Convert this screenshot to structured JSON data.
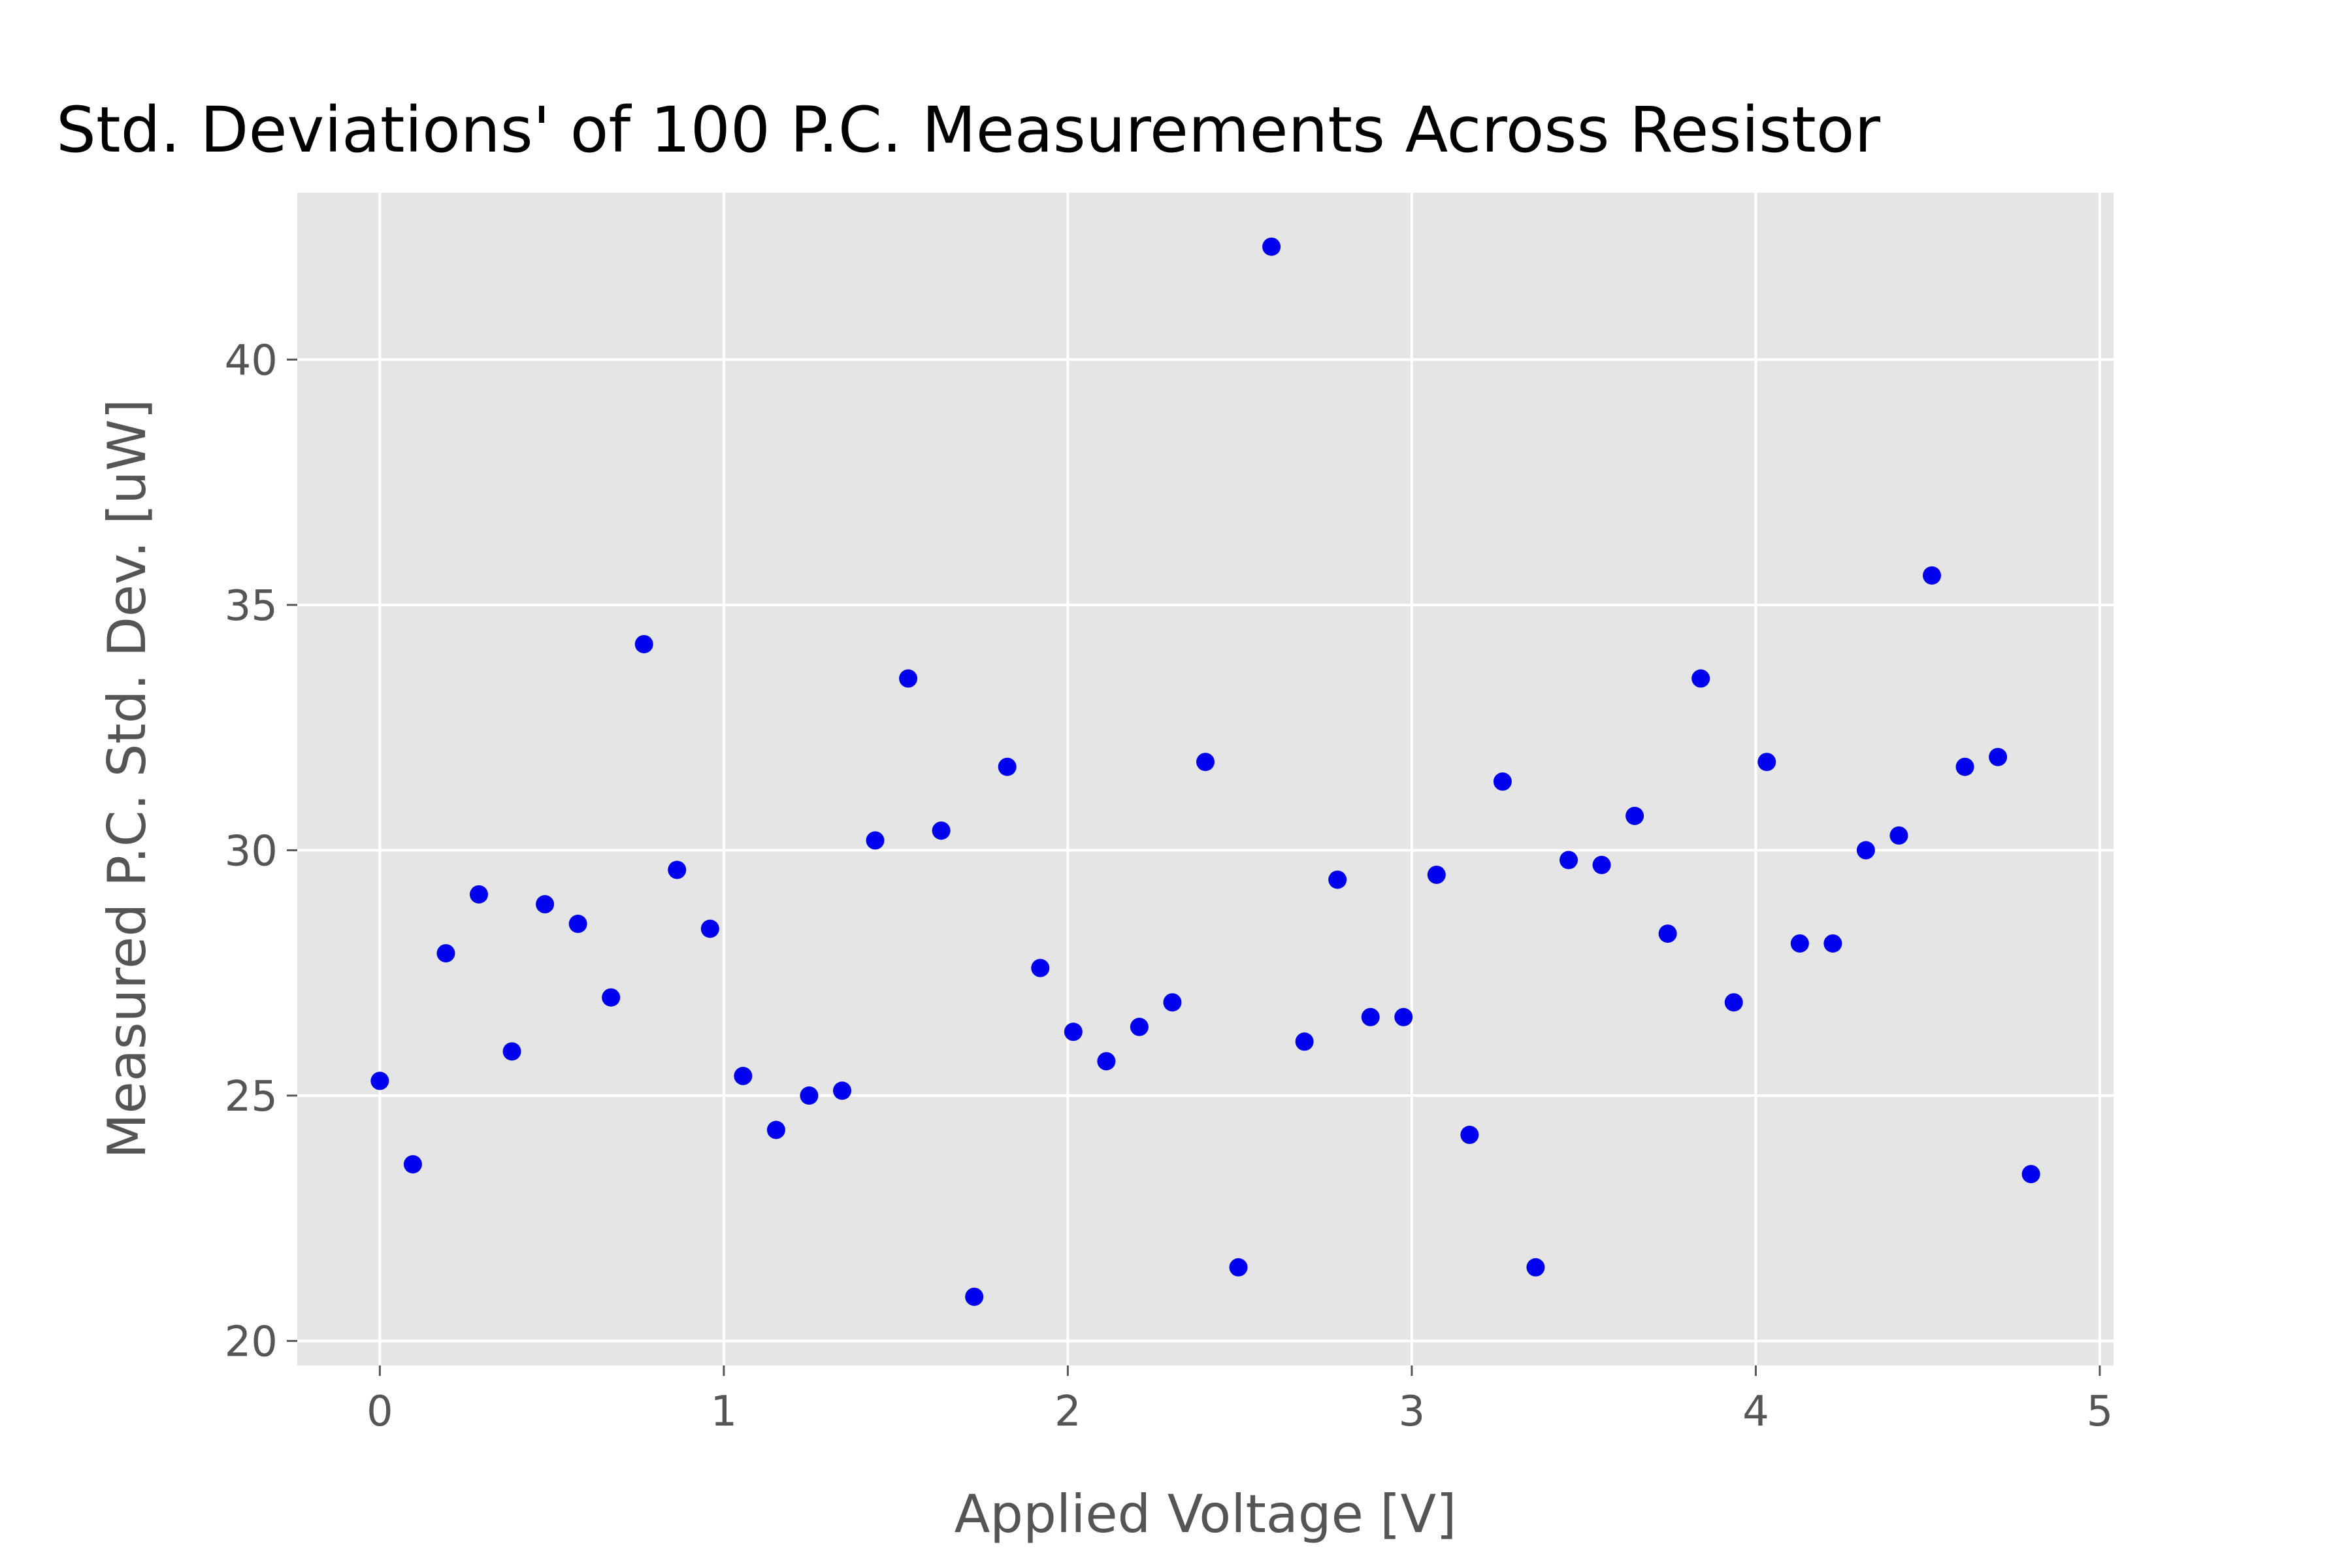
{
  "chart_data": {
    "type": "scatter",
    "title": "Std. Deviations' of 100 P.C. Measurements Across Resistor",
    "xlabel": "Applied Voltage [V]",
    "ylabel": "Measured P.C. Std. Dev. [uW]",
    "xlim": [
      -0.24,
      5.04
    ],
    "ylim": [
      19.5,
      43.4
    ],
    "xticks": [
      0,
      1,
      2,
      3,
      4,
      5
    ],
    "yticks": [
      20,
      25,
      30,
      35,
      40
    ],
    "grid": true,
    "colors": {
      "background": "#e5e5e5",
      "grid": "#ffffff",
      "marker": "#0000ee"
    },
    "series": [
      {
        "x": [
          0.0,
          0.096,
          0.192,
          0.288,
          0.384,
          0.48,
          0.576,
          0.672,
          0.768,
          0.864,
          0.96,
          1.056,
          1.152,
          1.248,
          1.344,
          1.44,
          1.536,
          1.632,
          1.728,
          1.824,
          1.92,
          2.016,
          2.112,
          2.208,
          2.304,
          2.4,
          2.496,
          2.592,
          2.688,
          2.784,
          2.88,
          2.976,
          3.072,
          3.168,
          3.264,
          3.36,
          3.456,
          3.552,
          3.648,
          3.744,
          3.84,
          3.936,
          4.032,
          4.128,
          4.224,
          4.32,
          4.416,
          4.512,
          4.608,
          4.704,
          4.8
        ],
        "y": [
          25.3,
          23.6,
          27.9,
          29.1,
          25.9,
          28.9,
          28.5,
          27.0,
          34.2,
          29.6,
          28.4,
          25.4,
          24.3,
          25.0,
          25.1,
          30.2,
          33.5,
          30.4,
          20.9,
          31.7,
          27.6,
          26.3,
          25.7,
          26.4,
          26.9,
          31.8,
          21.5,
          42.3,
          26.1,
          29.4,
          26.6,
          26.6,
          29.5,
          24.2,
          31.4,
          21.5,
          29.8,
          29.7,
          30.7,
          28.3,
          33.5,
          26.9,
          31.8,
          28.1,
          28.1,
          30.0,
          30.3,
          35.6,
          31.7,
          31.9,
          23.4
        ]
      }
    ]
  }
}
